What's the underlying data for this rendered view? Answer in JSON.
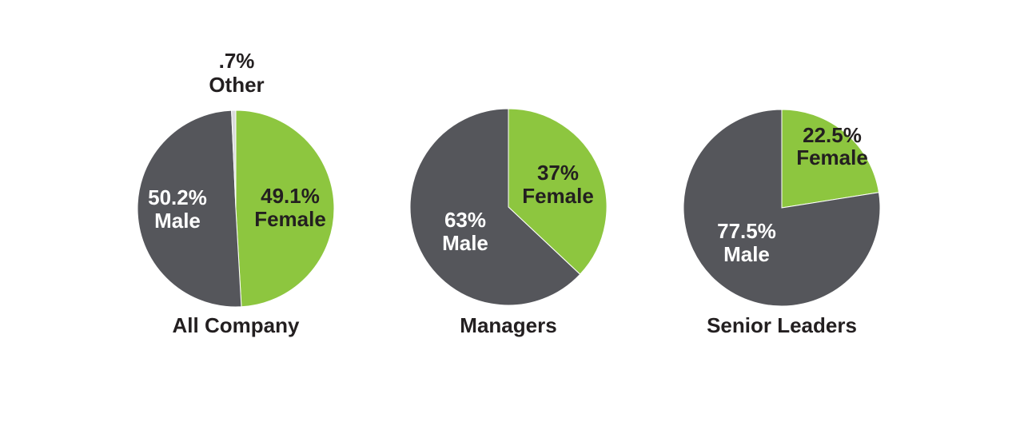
{
  "colors": {
    "female": "#8dc63f",
    "male": "#55565b",
    "other": "#d9dadc",
    "text_dark": "#231f20",
    "text_light": "#ffffff"
  },
  "chart_data": [
    {
      "type": "pie",
      "title": "All Company",
      "slices": [
        {
          "name": "Female",
          "value": 49.1,
          "pct_label": "49.1%",
          "color": "#8dc63f"
        },
        {
          "name": "Male",
          "value": 50.2,
          "pct_label": "50.2%",
          "color": "#55565b"
        },
        {
          "name": "Other",
          "value": 0.7,
          "pct_label": ".7%",
          "color": "#d9dadc"
        }
      ]
    },
    {
      "type": "pie",
      "title": "Managers",
      "slices": [
        {
          "name": "Female",
          "value": 37,
          "pct_label": "37%",
          "color": "#8dc63f"
        },
        {
          "name": "Male",
          "value": 63,
          "pct_label": "63%",
          "color": "#55565b"
        }
      ]
    },
    {
      "type": "pie",
      "title": "Senior Leaders",
      "slices": [
        {
          "name": "Female",
          "value": 22.5,
          "pct_label": "22.5%",
          "color": "#8dc63f"
        },
        {
          "name": "Male",
          "value": 77.5,
          "pct_label": "77.5%",
          "color": "#55565b"
        }
      ]
    }
  ]
}
